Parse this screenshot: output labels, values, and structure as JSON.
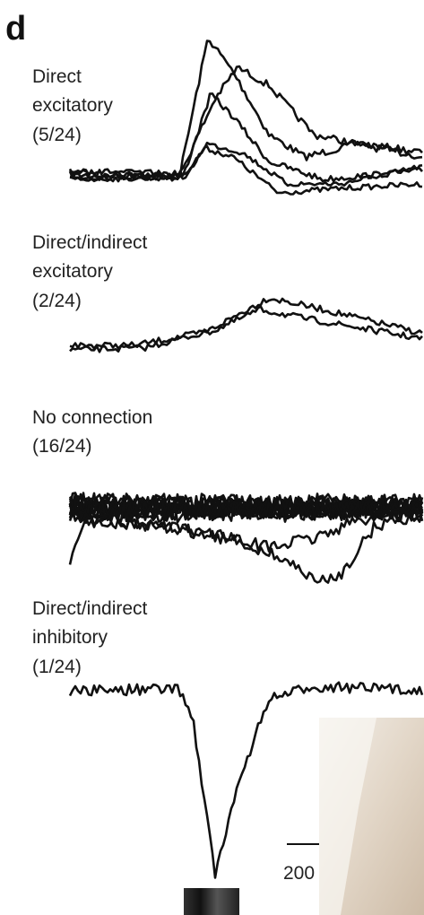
{
  "panel_label": "d",
  "groups": [
    {
      "lines": [
        "Direct",
        "excitatory",
        "(5/24)"
      ]
    },
    {
      "lines": [
        "Direct/indirect",
        "excitatory",
        "(2/24)"
      ]
    },
    {
      "lines": [
        "No connection",
        "(16/24)"
      ]
    },
    {
      "lines": [
        "Direct/indirect",
        "inhibitory",
        "(1/24)"
      ]
    }
  ],
  "scale_bar": {
    "label": "200"
  }
}
